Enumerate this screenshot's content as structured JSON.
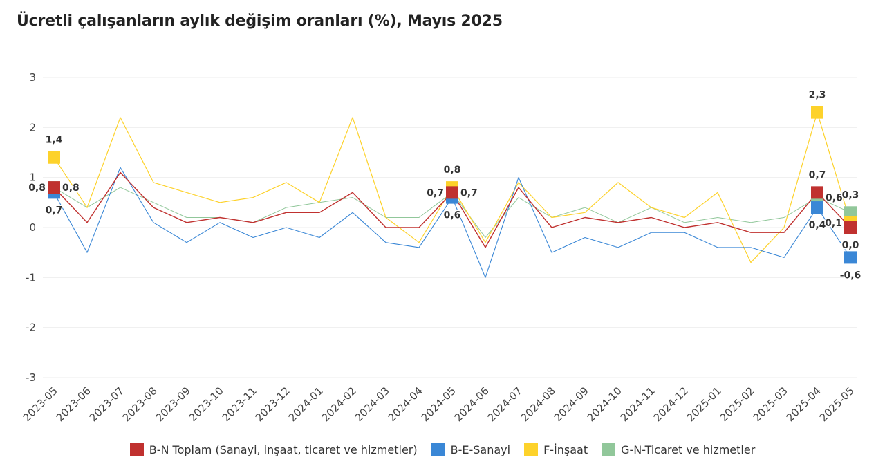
{
  "chart_data": {
    "type": "line",
    "title": "Ücretli çalışanların aylık değişim oranları (%), Mayıs 2025",
    "xlabel": "",
    "ylabel": "",
    "ylim": [
      -3,
      3
    ],
    "yticks": [
      "3",
      "2",
      "1",
      "0",
      "-1",
      "-2",
      "-3"
    ],
    "categories": [
      "2023-05",
      "2023-06",
      "2023-07",
      "2023-08",
      "2023-09",
      "2023-10",
      "2023-11",
      "2023-12",
      "2024-01",
      "2024-02",
      "2024-03",
      "2024-04",
      "2024-05",
      "2024-06",
      "2024-07",
      "2024-08",
      "2024-09",
      "2024-10",
      "2024-11",
      "2024-12",
      "2025-01",
      "2025-02",
      "2025-03",
      "2025-04",
      "2025-05"
    ],
    "series": [
      {
        "name": "B-N Toplam (Sanayi, inşaat, ticaret ve hizmetler)",
        "color": "#c0312f",
        "values": [
          0.8,
          0.1,
          1.1,
          0.4,
          0.1,
          0.2,
          0.1,
          0.3,
          0.3,
          0.7,
          0.0,
          0.0,
          0.7,
          -0.4,
          0.8,
          0.0,
          0.2,
          0.1,
          0.2,
          0.0,
          0.1,
          -0.1,
          -0.1,
          0.7,
          0.0
        ]
      },
      {
        "name": "B-E-Sanayi",
        "color": "#3a87d6",
        "values": [
          0.7,
          -0.5,
          1.2,
          0.1,
          -0.3,
          0.1,
          -0.2,
          0.0,
          -0.2,
          0.3,
          -0.3,
          -0.4,
          0.6,
          -1.0,
          1.0,
          -0.5,
          -0.2,
          -0.4,
          -0.1,
          -0.1,
          -0.4,
          -0.4,
          -0.6,
          0.4,
          -0.6
        ]
      },
      {
        "name": "F-İnşaat",
        "color": "#fdd22b",
        "values": [
          1.4,
          0.4,
          2.2,
          0.9,
          0.7,
          0.5,
          0.6,
          0.9,
          0.5,
          2.2,
          0.2,
          -0.3,
          0.8,
          -0.3,
          0.9,
          0.2,
          0.3,
          0.9,
          0.4,
          0.2,
          0.7,
          -0.7,
          0.0,
          2.3,
          0.1
        ]
      },
      {
        "name": "G-N-Ticaret ve hizmetler",
        "color": "#91c79a",
        "values": [
          0.8,
          0.4,
          0.8,
          0.5,
          0.2,
          0.2,
          0.1,
          0.4,
          0.5,
          0.6,
          0.2,
          0.2,
          0.7,
          -0.2,
          0.6,
          0.2,
          0.4,
          0.1,
          0.4,
          0.1,
          0.2,
          0.1,
          0.2,
          0.6,
          0.3
        ]
      }
    ],
    "data_labels": [
      {
        "text": "1,4",
        "category": "2023-05",
        "series": "F-İnşaat"
      },
      {
        "text": "0,8",
        "category": "2023-05",
        "series": "B-N Toplam (Sanayi, inşaat, ticaret ve hizmetler)",
        "side": "left"
      },
      {
        "text": "0,8",
        "category": "2023-05",
        "series": "G-N-Ticaret ve hizmetler",
        "side": "right"
      },
      {
        "text": "0,7",
        "category": "2023-05",
        "series": "B-E-Sanayi",
        "side": "below"
      },
      {
        "text": "0,8",
        "category": "2024-05",
        "series": "F-İnşaat"
      },
      {
        "text": "0,7",
        "category": "2024-05",
        "series": "B-N Toplam (Sanayi, inşaat, ticaret ve hizmetler)",
        "side": "left"
      },
      {
        "text": "0,7",
        "category": "2024-05",
        "series": "G-N-Ticaret ve hizmetler",
        "side": "right"
      },
      {
        "text": "0,6",
        "category": "2024-05",
        "series": "B-E-Sanayi",
        "side": "below"
      },
      {
        "text": "2,3",
        "category": "2025-04",
        "series": "F-İnşaat"
      },
      {
        "text": "0,7",
        "category": "2025-04",
        "series": "B-N Toplam (Sanayi, inşaat, ticaret ve hizmetler)"
      },
      {
        "text": "0,6",
        "category": "2025-04",
        "series": "G-N-Ticaret ve hizmetler",
        "side": "right"
      },
      {
        "text": "0,4",
        "category": "2025-04",
        "series": "B-E-Sanayi",
        "side": "below"
      },
      {
        "text": "0,3",
        "category": "2025-05",
        "series": "G-N-Ticaret ve hizmetler"
      },
      {
        "text": "0,1",
        "category": "2025-05",
        "series": "F-İnşaat",
        "side": "left"
      },
      {
        "text": "0,0",
        "category": "2025-05",
        "series": "B-N Toplam (Sanayi, inşaat, ticaret ve hizmetler)",
        "side": "below"
      },
      {
        "text": "-0,6",
        "category": "2025-05",
        "series": "B-E-Sanayi",
        "side": "below"
      }
    ],
    "marker_categories": [
      "2023-05",
      "2024-05",
      "2025-04",
      "2025-05"
    ],
    "grid": true,
    "legend": "bottom"
  }
}
